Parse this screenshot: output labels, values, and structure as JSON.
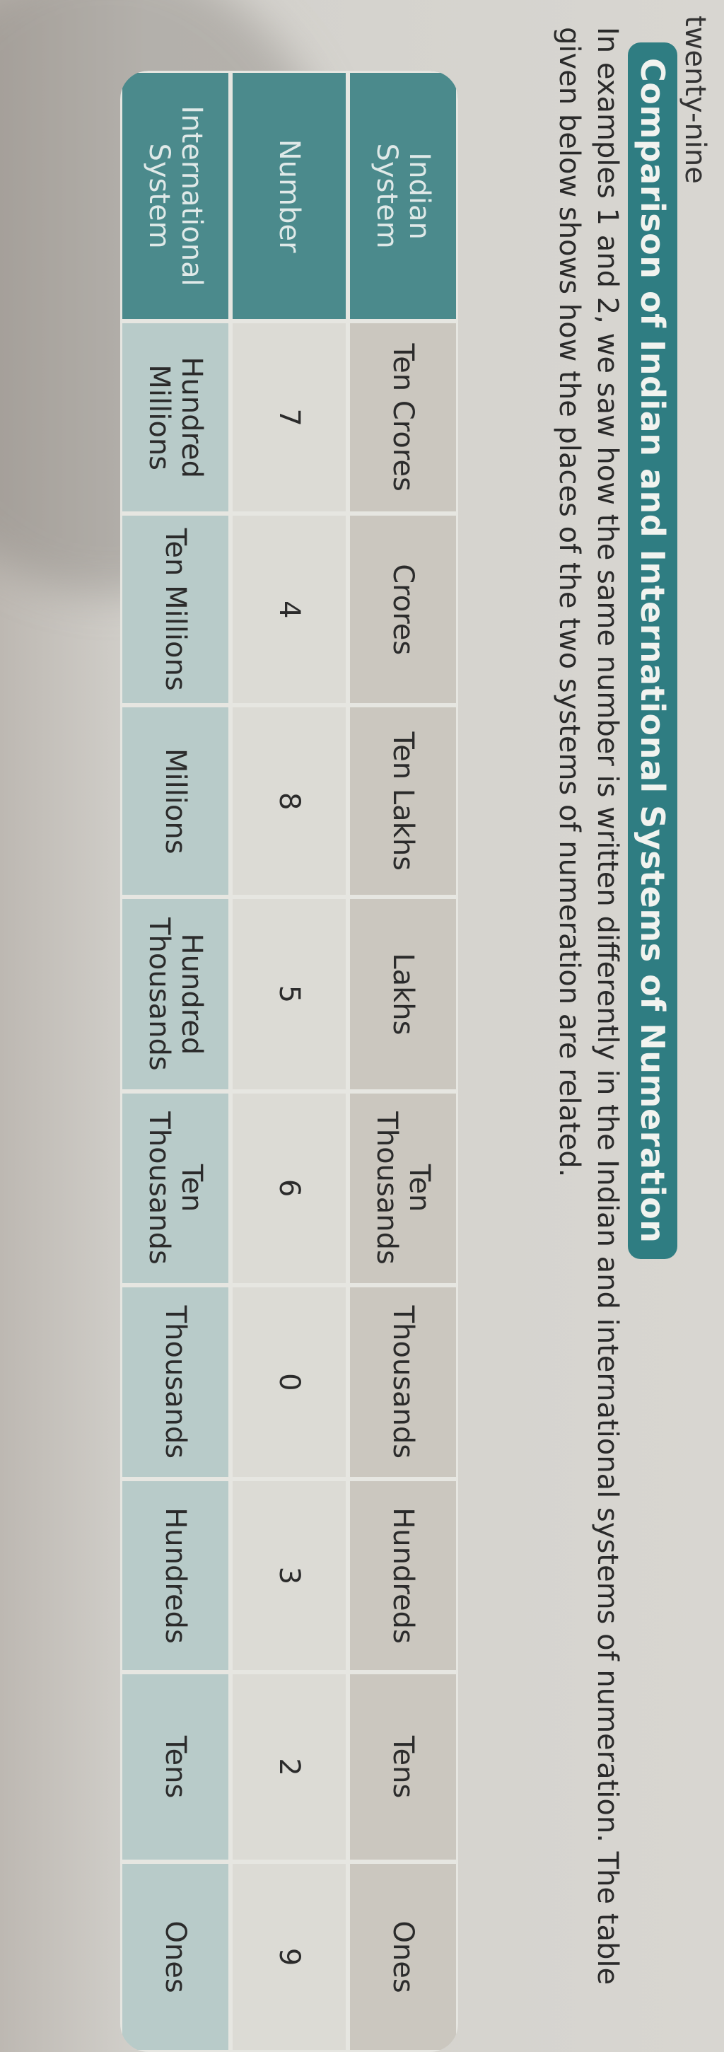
{
  "page_number_text": "twenty-nine",
  "heading": "Comparison of Indian and International Systems of Numeration",
  "paragraph": "In examples 1 and 2, we saw how the same number is written differently in the Indian and international systems of numeration. The table given below shows how the places of the two systems of numeration are related.",
  "colors": {
    "heading_bg": "#2f7d82",
    "row_header_bg": "#4b8a8c",
    "indian_row_bg": "#cbc7bf",
    "number_row_bg": "#dcdbd5",
    "international_row_bg": "#b8cbc9"
  },
  "table": {
    "rows": [
      {
        "header": "Indian\nSystem",
        "cells": [
          "Ten Crores",
          "Crores",
          "Ten Lakhs",
          "Lakhs",
          "Ten Thousands",
          "Thousands",
          "Hundreds",
          "Tens",
          "Ones"
        ]
      },
      {
        "header": "Number",
        "cells": [
          "7",
          "4",
          "8",
          "5",
          "6",
          "0",
          "3",
          "2",
          "9"
        ]
      },
      {
        "header": "International\nSystem",
        "cells": [
          "Hundred Millions",
          "Ten Millions",
          "Millions",
          "Hundred Thousands",
          "Ten Thousands",
          "Thousands",
          "Hundreds",
          "Tens",
          "Ones"
        ]
      }
    ]
  }
}
